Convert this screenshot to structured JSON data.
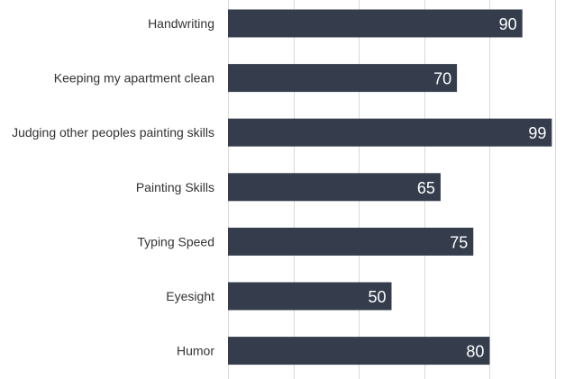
{
  "chart_data": {
    "type": "bar",
    "orientation": "horizontal",
    "categories": [
      "Handwriting",
      "Keeping my apartment clean",
      "Judging other peoples painting skills",
      "Painting Skills",
      "Typing Speed",
      "Eyesight",
      "Humor"
    ],
    "values": [
      90,
      70,
      99,
      65,
      75,
      50,
      80
    ],
    "xlim": [
      0,
      100
    ],
    "grid": true,
    "data_labels": true,
    "bar_color": "#353d4d",
    "label_color": "#ffffff",
    "gridline_color": "#d9d9d9",
    "title": "",
    "xlabel": "",
    "ylabel": ""
  }
}
